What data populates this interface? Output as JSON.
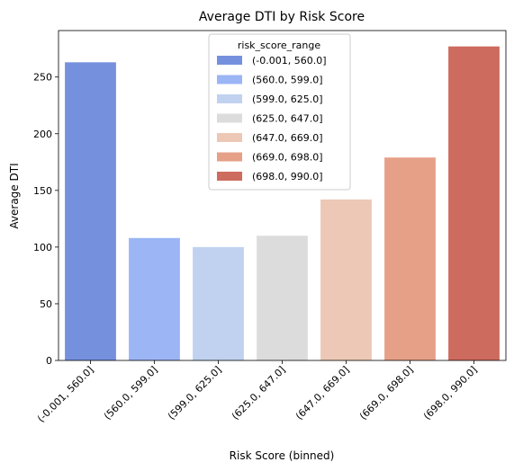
{
  "chart_data": {
    "type": "bar",
    "title": "Average DTI by Risk Score",
    "xlabel": "Risk Score (binned)",
    "ylabel": "Average DTI",
    "categories": [
      "(-0.001, 560.0]",
      "(560.0, 599.0]",
      "(599.0, 625.0]",
      "(625.0, 647.0]",
      "(647.0, 669.0]",
      "(669.0, 698.0]",
      "(698.0, 990.0]"
    ],
    "values": [
      263,
      108,
      100,
      110,
      142,
      179,
      277
    ],
    "colors": [
      "#7591de",
      "#9bb5f5",
      "#c1d1f0",
      "#dcdcdc",
      "#edc8b6",
      "#e5a087",
      "#cd6b5e"
    ],
    "yticks": [
      0,
      50,
      100,
      150,
      200,
      250
    ],
    "ylim": [
      0,
      291
    ],
    "grid": false,
    "legend": {
      "title": "risk_score_range",
      "placement": "top-center"
    }
  }
}
